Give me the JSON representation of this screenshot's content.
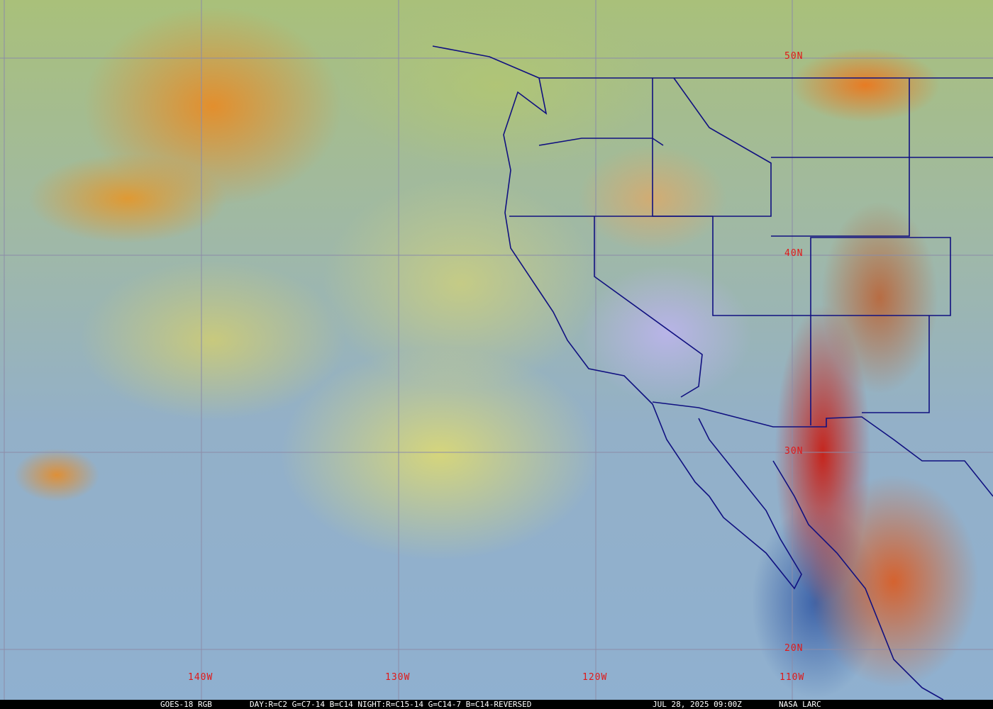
{
  "map": {
    "lat_labels": [
      "50N",
      "40N",
      "30N",
      "20N"
    ],
    "lon_labels": [
      "140W",
      "130W",
      "120W",
      "110W"
    ],
    "grid_color": "#8c8ca8",
    "label_color": "#e01818",
    "border_color": "#101080"
  },
  "caption": {
    "satellite": "GOES-18 RGB",
    "recipe": "DAY:R=C2 G=C7-14 B=C14 NIGHT:R=C15-14 G=C14-7 B=C14-REVERSED",
    "datetime": "JUL 28, 2025 09:00Z",
    "credit": "NASA LARC"
  }
}
